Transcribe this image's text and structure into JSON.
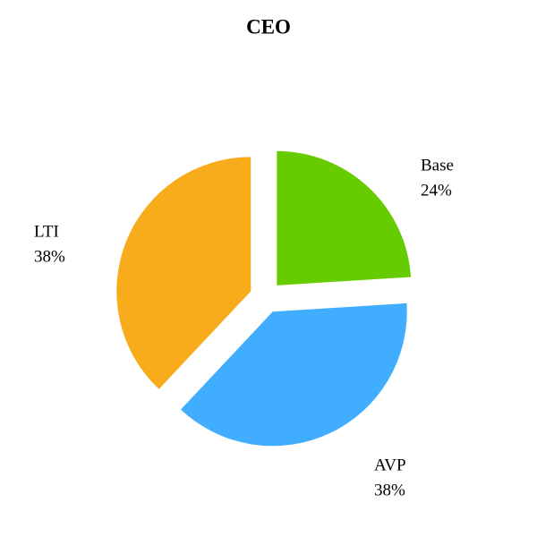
{
  "chart_data": {
    "type": "pie",
    "title": "CEO",
    "categories": [
      "Base",
      "AVP",
      "LTI"
    ],
    "values": [
      24,
      38,
      38
    ],
    "value_labels": [
      "24%",
      "38%",
      "38%"
    ],
    "colors": [
      "#66cc00",
      "#40adff",
      "#f8ab1b"
    ]
  }
}
